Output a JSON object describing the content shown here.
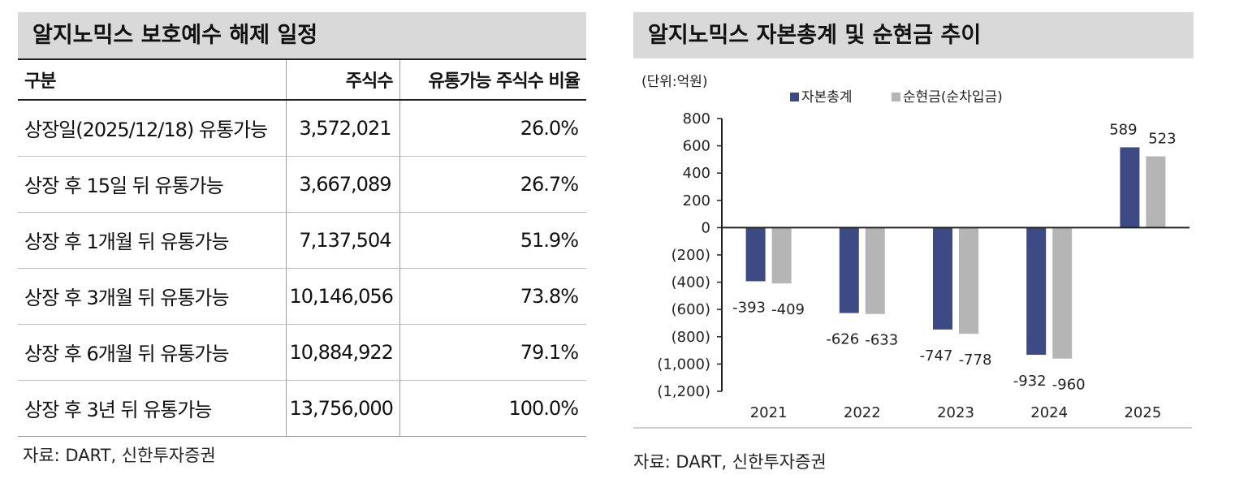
{
  "left": {
    "title": "알지노믹스 보호예수 해제 일정",
    "headers": [
      "구분",
      "주식수",
      "유통가능 주식수 비율"
    ],
    "rows": [
      [
        "상장일(2025/12/18) 유통가능",
        "3,572,021",
        "26.0%"
      ],
      [
        "상장 후 15일 뒤 유통가능",
        "3,667,089",
        "26.7%"
      ],
      [
        "상장 후 1개월 뒤 유통가능",
        "7,137,504",
        "51.9%"
      ],
      [
        "상장 후 3개월 뒤 유통가능",
        "10,146,056",
        "73.8%"
      ],
      [
        "상장 후 6개월 뒤 유통가능",
        "10,884,922",
        "79.1%"
      ],
      [
        "상장 후 3년 뒤 유통가능",
        "13,756,000",
        "100.0%"
      ]
    ],
    "source": "자료: DART, 신한투자증권"
  },
  "right": {
    "title": "알지노믹스 자본총계 및 순현금 추이",
    "source": "자료: DART, 신한투자증권"
  },
  "chart_data": {
    "type": "bar",
    "title": "알지노믹스 자본총계 및 순현금 추이",
    "unit_label": "(단위:억원)",
    "categories": [
      "2021",
      "2022",
      "2023",
      "2024",
      "2025"
    ],
    "series": [
      {
        "name": "자본총계",
        "color": "#3e4a84",
        "values": [
          -393,
          -626,
          -747,
          -932,
          589
        ]
      },
      {
        "name": "순현금(순차입금)",
        "color": "#b5b5b5",
        "values": [
          -409,
          -633,
          -778,
          -960,
          523
        ]
      }
    ],
    "data_labels": [
      [
        "-393",
        "-626",
        "-747",
        "-932",
        "589"
      ],
      [
        "-409",
        "-633",
        "-778",
        "-960",
        "523"
      ]
    ],
    "yticks": [
      800,
      600,
      400,
      200,
      0,
      -200,
      -400,
      -600,
      -800,
      -1000,
      -1200
    ],
    "ytick_labels": [
      "800",
      "600",
      "400",
      "200",
      "0",
      "(200)",
      "(400)",
      "(600)",
      "(800)",
      "(1,000)",
      "(1,200)"
    ],
    "ylim": [
      -1200,
      800
    ],
    "legend_position": "top",
    "grid": false
  }
}
